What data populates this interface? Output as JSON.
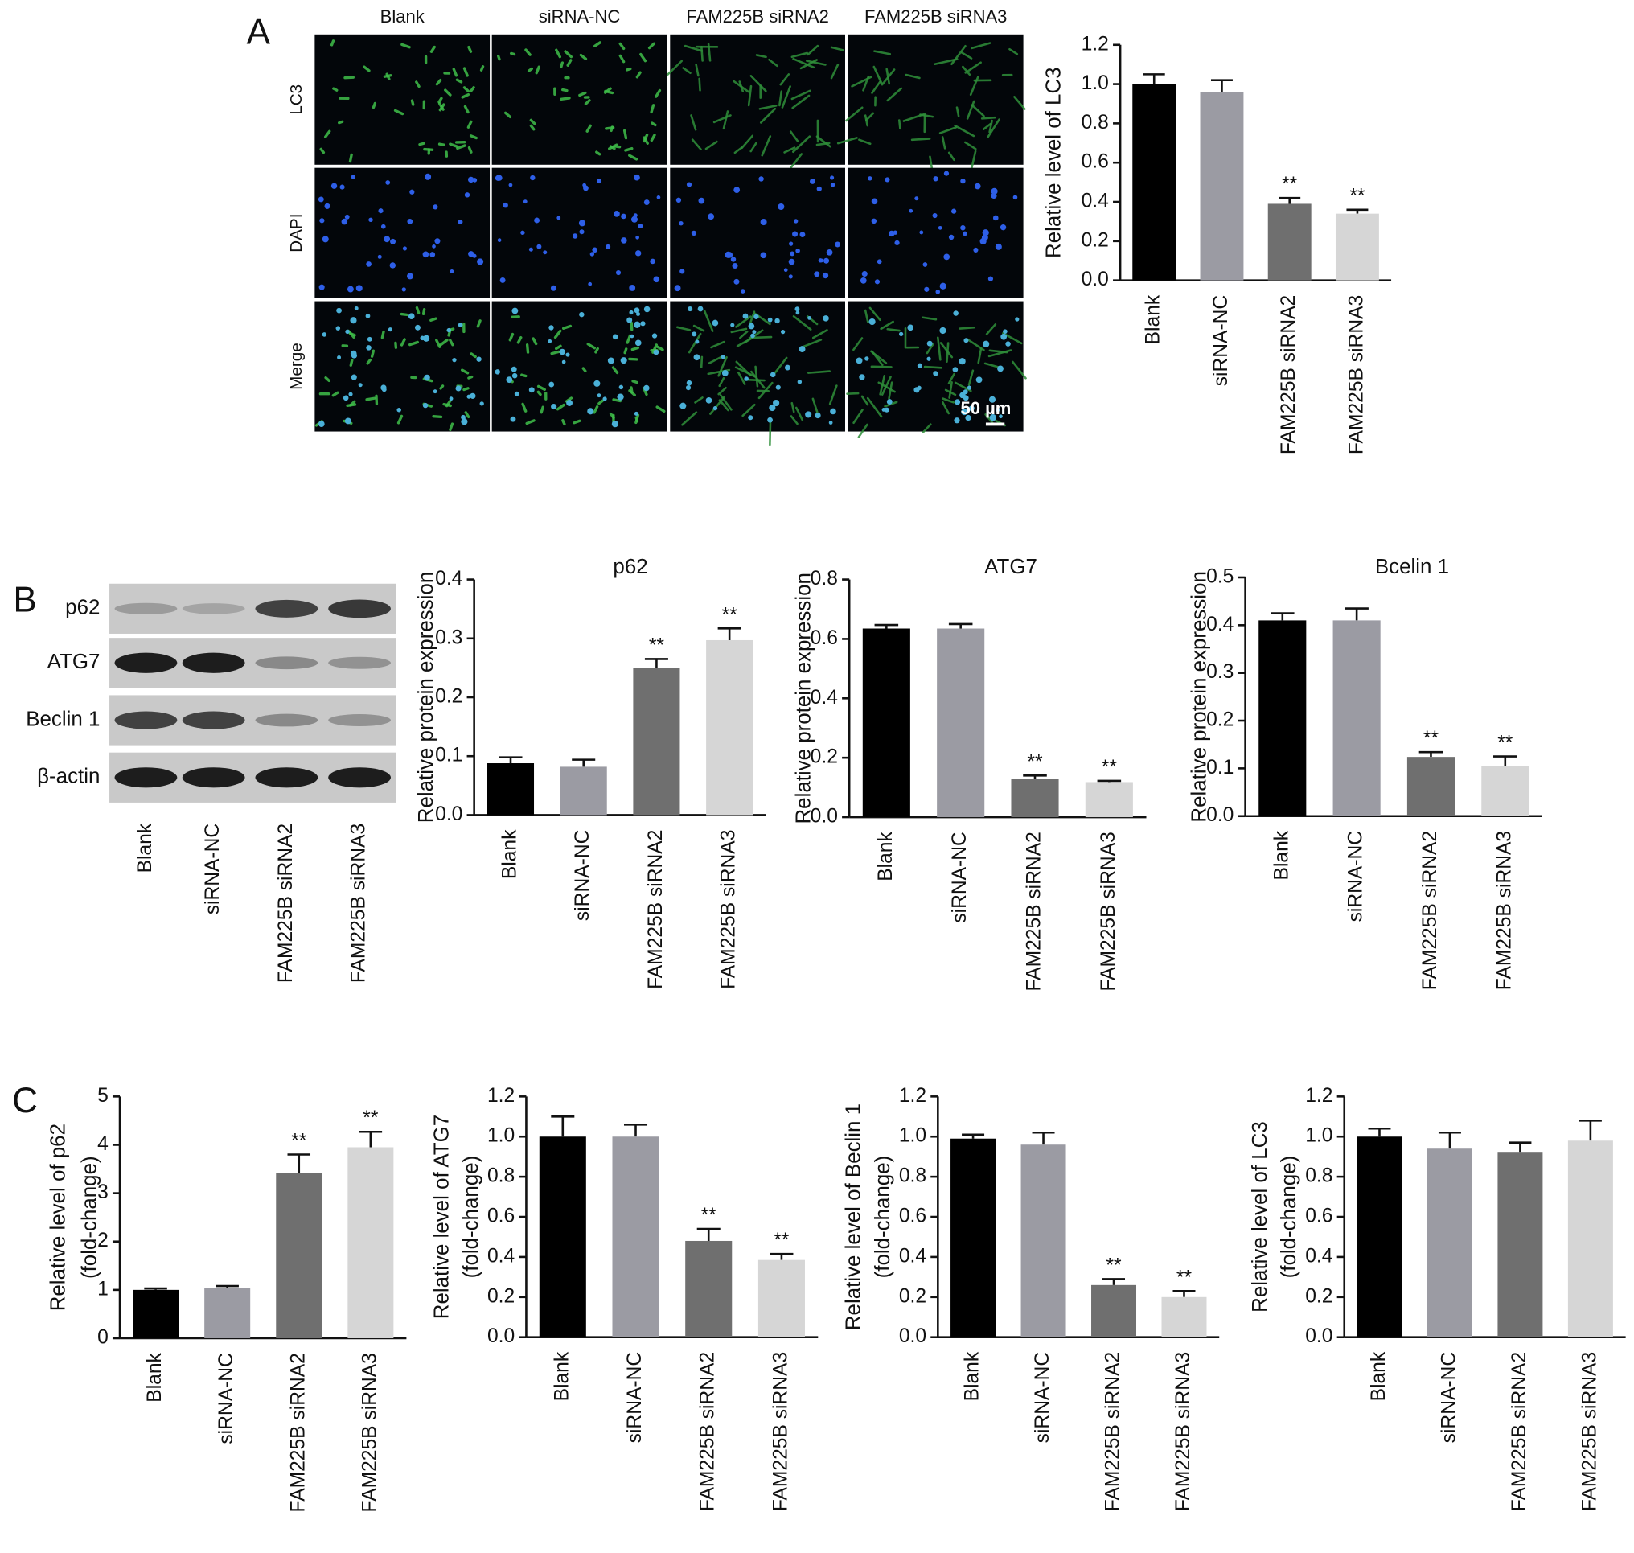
{
  "figure": {
    "panel_labels": [
      "A",
      "B",
      "C"
    ],
    "micrograph": {
      "columns": [
        "Blank",
        "siRNA-NC",
        "FAM225B siRNA2",
        "FAM225B siRNA3"
      ],
      "rows": [
        "LC3",
        "DAPI",
        "Merge"
      ],
      "scale_bar": "50 µm"
    },
    "western_blot": {
      "proteins": [
        "p62",
        "ATG7",
        "Beclin 1",
        "β-actin"
      ],
      "lanes": [
        "Blank",
        "siRNA-NC",
        "FAM225B siRNA2",
        "FAM225B siRNA3"
      ]
    }
  },
  "chart_data": [
    {
      "type": "bar",
      "y_label": [
        "Relative level of LC3"
      ],
      "categories": [
        "Blank",
        "siRNA-NC",
        "FAM225B siRNA2",
        "FAM225B siRNA3"
      ],
      "values": [
        1.0,
        0.96,
        0.39,
        0.34
      ],
      "errors": [
        0.05,
        0.06,
        0.03,
        0.02
      ],
      "annotations": [
        null,
        null,
        "**",
        "**"
      ],
      "colors": [
        "#000000",
        "#9b9ba3",
        "#6f6f6f",
        "#d6d6d6"
      ],
      "ylim": [
        0,
        1.2
      ],
      "yticks": [
        {
          "value": 0,
          "label": "0.0"
        },
        0.2,
        0.4,
        0.6,
        0.8,
        {
          "value": 1,
          "label": "1.0"
        },
        1.2
      ]
    },
    {
      "type": "bar",
      "title": "p62",
      "y_label": [
        "Relative protein expression"
      ],
      "categories": [
        "Blank",
        "siRNA-NC",
        "FAM225B siRNA2",
        "FAM225B siRNA3"
      ],
      "values": [
        0.088,
        0.082,
        0.25,
        0.297
      ],
      "errors": [
        0.01,
        0.012,
        0.015,
        0.02
      ],
      "annotations": [
        null,
        null,
        "**",
        "**"
      ],
      "colors": [
        "#000000",
        "#9b9ba3",
        "#6f6f6f",
        "#d6d6d6"
      ],
      "ylim": [
        0,
        0.4
      ],
      "yticks": [
        {
          "value": 0,
          "label": "0.0"
        },
        0.1,
        0.2,
        0.3,
        0.4
      ]
    },
    {
      "type": "bar",
      "title": "ATG7",
      "y_label": [
        "Relative protein expression"
      ],
      "categories": [
        "Blank",
        "siRNA-NC",
        "FAM225B siRNA2",
        "FAM225B siRNA3"
      ],
      "values": [
        0.635,
        0.635,
        0.128,
        0.118
      ],
      "errors": [
        0.012,
        0.015,
        0.012,
        0.004
      ],
      "annotations": [
        null,
        null,
        "**",
        "**"
      ],
      "colors": [
        "#000000",
        "#9b9ba3",
        "#6f6f6f",
        "#d6d6d6"
      ],
      "ylim": [
        0,
        0.8
      ],
      "yticks": [
        {
          "value": 0,
          "label": "0.0"
        },
        0.2,
        0.4,
        0.6,
        0.8
      ]
    },
    {
      "type": "bar",
      "title": "Bcelin 1",
      "y_label": [
        "Relative protein expression"
      ],
      "categories": [
        "Blank",
        "siRNA-NC",
        "FAM225B siRNA2",
        "FAM225B siRNA3"
      ],
      "values": [
        0.41,
        0.41,
        0.124,
        0.105
      ],
      "errors": [
        0.015,
        0.025,
        0.01,
        0.02
      ],
      "annotations": [
        null,
        null,
        "**",
        "**"
      ],
      "colors": [
        "#000000",
        "#9b9ba3",
        "#6f6f6f",
        "#d6d6d6"
      ],
      "ylim": [
        0,
        0.5
      ],
      "yticks": [
        {
          "value": 0,
          "label": "0.0"
        },
        0.1,
        0.2,
        0.3,
        0.4,
        0.5
      ]
    },
    {
      "type": "bar",
      "y_label": [
        "Relative level of p62",
        "(fold-change)"
      ],
      "categories": [
        "Blank",
        "siRNA-NC",
        "FAM225B siRNA2",
        "FAM225B siRNA3"
      ],
      "values": [
        1.0,
        1.04,
        3.42,
        3.95
      ],
      "errors": [
        0.03,
        0.04,
        0.38,
        0.32
      ],
      "annotations": [
        null,
        null,
        "**",
        "**"
      ],
      "colors": [
        "#000000",
        "#9b9ba3",
        "#6f6f6f",
        "#d6d6d6"
      ],
      "ylim": [
        0,
        5
      ],
      "yticks": [
        0,
        1,
        2,
        3,
        4,
        5
      ]
    },
    {
      "type": "bar",
      "y_label": [
        "Relative level of ATG7",
        "(fold-change)"
      ],
      "categories": [
        "Blank",
        "siRNA-NC",
        "FAM225B siRNA2",
        "FAM225B siRNA3"
      ],
      "values": [
        1.0,
        1.0,
        0.48,
        0.385
      ],
      "errors": [
        0.1,
        0.06,
        0.06,
        0.03
      ],
      "annotations": [
        null,
        null,
        "**",
        "**"
      ],
      "colors": [
        "#000000",
        "#9b9ba3",
        "#6f6f6f",
        "#d6d6d6"
      ],
      "ylim": [
        0,
        1.2
      ],
      "yticks": [
        {
          "value": 0,
          "label": "0.0"
        },
        0.2,
        0.4,
        0.6,
        0.8,
        {
          "value": 1,
          "label": "1.0"
        },
        1.2
      ]
    },
    {
      "type": "bar",
      "y_label": [
        "Relative level of Beclin 1",
        "(fold-change)"
      ],
      "categories": [
        "Blank",
        "siRNA-NC",
        "FAM225B siRNA2",
        "FAM225B siRNA3"
      ],
      "values": [
        0.99,
        0.96,
        0.26,
        0.2
      ],
      "errors": [
        0.02,
        0.06,
        0.03,
        0.03
      ],
      "annotations": [
        null,
        null,
        "**",
        "**"
      ],
      "colors": [
        "#000000",
        "#9b9ba3",
        "#6f6f6f",
        "#d6d6d6"
      ],
      "ylim": [
        0,
        1.2
      ],
      "yticks": [
        {
          "value": 0,
          "label": "0.0"
        },
        0.2,
        0.4,
        0.6,
        0.8,
        {
          "value": 1,
          "label": "1.0"
        },
        1.2
      ]
    },
    {
      "type": "bar",
      "y_label": [
        "Relative level of LC3",
        "(fold-change)"
      ],
      "categories": [
        "Blank",
        "siRNA-NC",
        "FAM225B siRNA2",
        "FAM225B siRNA3"
      ],
      "values": [
        1.0,
        0.94,
        0.92,
        0.98
      ],
      "errors": [
        0.04,
        0.08,
        0.05,
        0.1
      ],
      "colors": [
        "#000000",
        "#9b9ba3",
        "#6f6f6f",
        "#d6d6d6"
      ],
      "ylim": [
        0,
        1.2
      ],
      "yticks": [
        {
          "value": 0,
          "label": "0.0"
        },
        0.2,
        0.4,
        0.6,
        0.8,
        {
          "value": 1,
          "label": "1.0"
        },
        1.2
      ]
    }
  ]
}
